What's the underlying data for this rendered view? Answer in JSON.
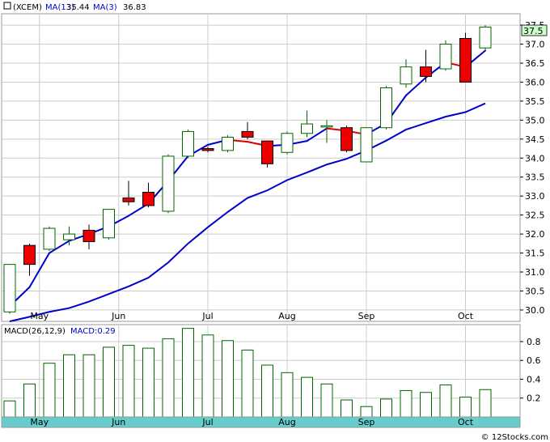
{
  "chart_data": [
    {
      "type": "candlestick",
      "symbol": "XCEM",
      "legend": [
        {
          "label": "(XCEM)",
          "color": "#000000"
        },
        {
          "label": "MA(13)",
          "value": "35.44",
          "color": "#0000cc"
        },
        {
          "label": "MA(3)",
          "value": "36.83",
          "color": "#0000cc"
        }
      ],
      "last_price_label": "37.5",
      "ylim": [
        29.7,
        37.8
      ],
      "yticks": [
        "30.0",
        "30.5",
        "31.0",
        "31.5",
        "32.0",
        "32.5",
        "33.0",
        "33.5",
        "34.0",
        "34.5",
        "35.0",
        "35.5",
        "36.0",
        "36.5",
        "37.0",
        "37.5"
      ],
      "month_labels": [
        "May",
        "Jun",
        "Jul",
        "Aug",
        "Sep",
        "Oct"
      ],
      "month_positions": [
        1.5,
        5.5,
        10,
        14,
        18,
        23
      ],
      "candles": [
        {
          "o": 29.95,
          "h": 31.2,
          "l": 29.9,
          "c": 31.2
        },
        {
          "o": 31.7,
          "h": 31.75,
          "l": 30.9,
          "c": 31.2
        },
        {
          "o": 31.6,
          "h": 32.2,
          "l": 31.55,
          "c": 32.15
        },
        {
          "o": 31.85,
          "h": 32.2,
          "l": 31.7,
          "c": 32.0
        },
        {
          "o": 32.1,
          "h": 32.25,
          "l": 31.6,
          "c": 31.8
        },
        {
          "o": 31.9,
          "h": 32.65,
          "l": 31.85,
          "c": 32.65
        },
        {
          "o": 32.95,
          "h": 33.4,
          "l": 32.75,
          "c": 32.85
        },
        {
          "o": 33.1,
          "h": 33.35,
          "l": 32.7,
          "c": 32.75
        },
        {
          "o": 32.6,
          "h": 34.1,
          "l": 32.55,
          "c": 34.05
        },
        {
          "o": 34.05,
          "h": 34.75,
          "l": 34.0,
          "c": 34.7
        },
        {
          "o": 34.25,
          "h": 34.3,
          "l": 34.15,
          "c": 34.2
        },
        {
          "o": 34.2,
          "h": 34.6,
          "l": 34.15,
          "c": 34.55
        },
        {
          "o": 34.7,
          "h": 34.95,
          "l": 34.5,
          "c": 34.55
        },
        {
          "o": 34.45,
          "h": 34.45,
          "l": 33.75,
          "c": 33.85
        },
        {
          "o": 34.15,
          "h": 34.7,
          "l": 34.1,
          "c": 34.65
        },
        {
          "o": 34.65,
          "h": 35.25,
          "l": 34.55,
          "c": 34.9
        },
        {
          "o": 34.85,
          "h": 35.0,
          "l": 34.4,
          "c": 34.85
        },
        {
          "o": 34.8,
          "h": 34.85,
          "l": 34.15,
          "c": 34.2
        },
        {
          "o": 33.9,
          "h": 34.8,
          "l": 33.9,
          "c": 34.8
        },
        {
          "o": 34.8,
          "h": 35.9,
          "l": 34.75,
          "c": 35.85
        },
        {
          "o": 35.95,
          "h": 36.6,
          "l": 35.85,
          "c": 36.4
        },
        {
          "o": 36.4,
          "h": 36.85,
          "l": 36.0,
          "c": 36.15
        },
        {
          "o": 36.35,
          "h": 37.1,
          "l": 36.3,
          "c": 37.0
        },
        {
          "o": 37.15,
          "h": 37.3,
          "l": 36.0,
          "c": 36.0
        },
        {
          "o": 36.9,
          "h": 37.5,
          "l": 36.85,
          "c": 37.45
        }
      ],
      "ma13": [
        29.7,
        29.82,
        29.95,
        30.05,
        30.22,
        30.42,
        30.62,
        30.85,
        31.25,
        31.75,
        32.18,
        32.58,
        32.95,
        33.15,
        33.42,
        33.62,
        33.83,
        33.98,
        34.2,
        34.46,
        34.75,
        34.92,
        35.09,
        35.21,
        35.44
      ],
      "ma3": [
        30.1,
        30.6,
        31.5,
        31.82,
        32.0,
        32.2,
        32.48,
        32.8,
        33.4,
        34.05,
        34.35,
        34.48,
        34.43,
        34.32,
        34.35,
        34.45,
        34.78,
        34.72,
        34.62,
        34.92,
        35.65,
        36.12,
        36.52,
        36.4,
        36.83
      ]
    },
    {
      "type": "bar",
      "title": "MACD(26,12,9)",
      "value_label": "MACD:0.29",
      "ylim": [
        0.0,
        0.98
      ],
      "yticks": [
        "0.2",
        "0.4",
        "0.6",
        "0.8"
      ],
      "values": [
        0.17,
        0.35,
        0.57,
        0.66,
        0.66,
        0.74,
        0.76,
        0.73,
        0.83,
        0.94,
        0.87,
        0.81,
        0.71,
        0.55,
        0.47,
        0.42,
        0.35,
        0.18,
        0.11,
        0.19,
        0.28,
        0.26,
        0.34,
        0.21,
        0.29
      ]
    }
  ]
}
